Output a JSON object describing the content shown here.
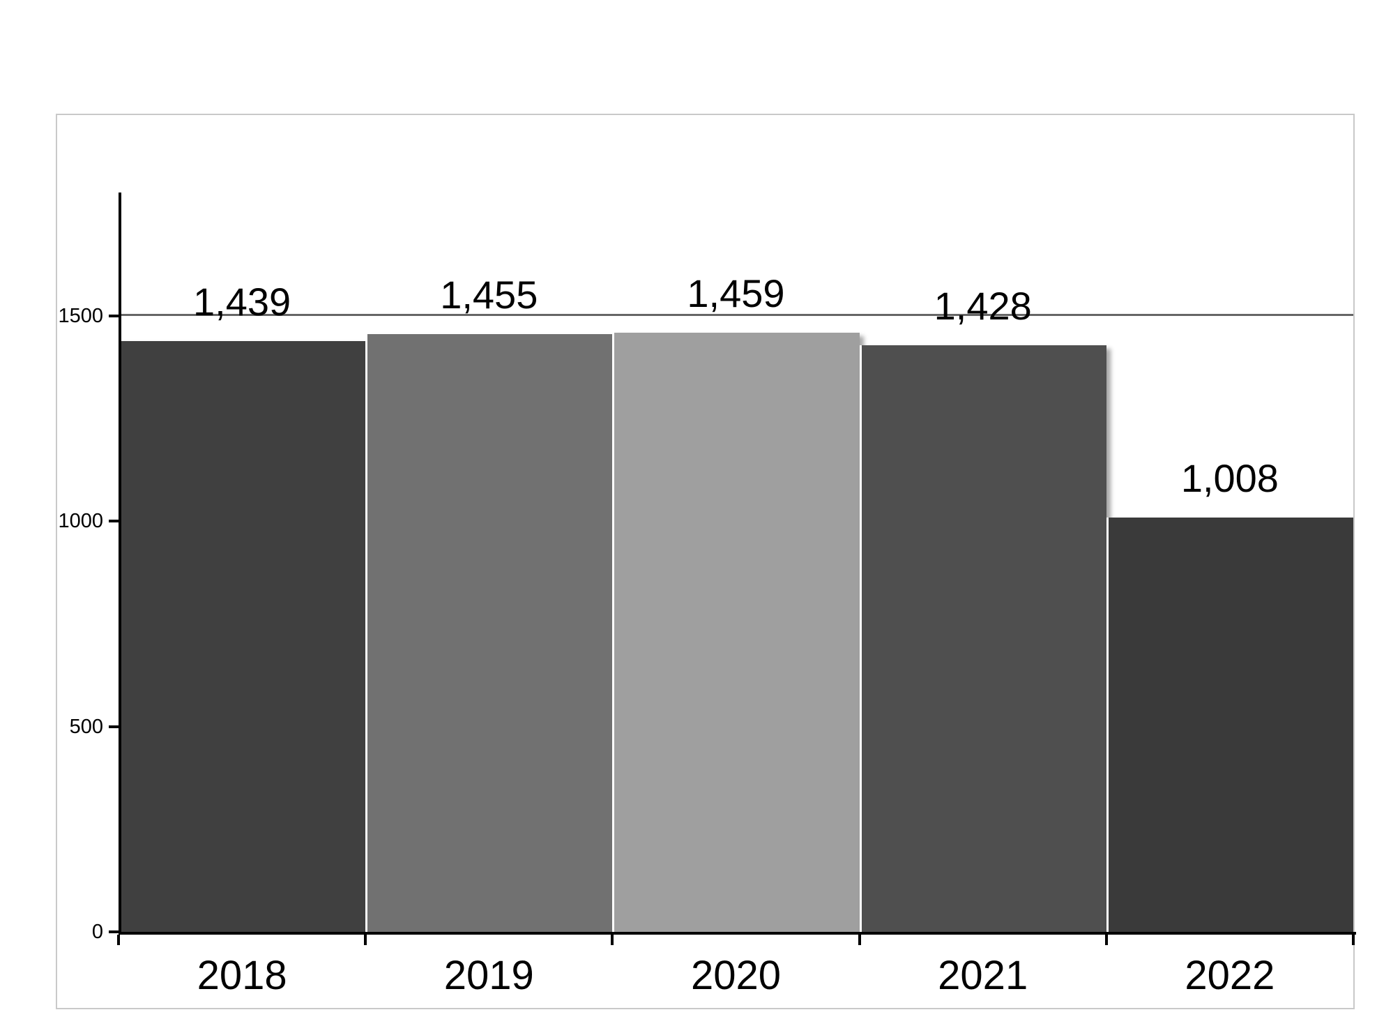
{
  "chart_data": {
    "type": "bar",
    "title": "",
    "xlabel": "",
    "ylabel": "",
    "categories": [
      "2018",
      "2019",
      "2020",
      "2021",
      "2022"
    ],
    "values": [
      1439,
      1455,
      1459,
      1428,
      1008
    ],
    "value_labels": [
      "1,439",
      "1,455",
      "1,459",
      "1,428",
      "1,008"
    ],
    "bar_colors": [
      "#404040",
      "#717171",
      "#9f9f9f",
      "#4f4f4f",
      "#3a3a3a"
    ],
    "ylim": [
      0,
      1800
    ],
    "y_ticks": [
      0,
      500,
      1000,
      1500
    ],
    "y_tick_labels": [
      "0",
      "500",
      "1000",
      "1500"
    ],
    "gridline_values": [
      1500
    ],
    "grid": "single-line-at-1500",
    "legend_position": "none",
    "data_label_position": "outside-end",
    "colors": {
      "axis": "#000000",
      "gridline": "#666666",
      "frame_border": "#c9c9c9",
      "background": "#ffffff",
      "label_text": "#000000"
    }
  }
}
